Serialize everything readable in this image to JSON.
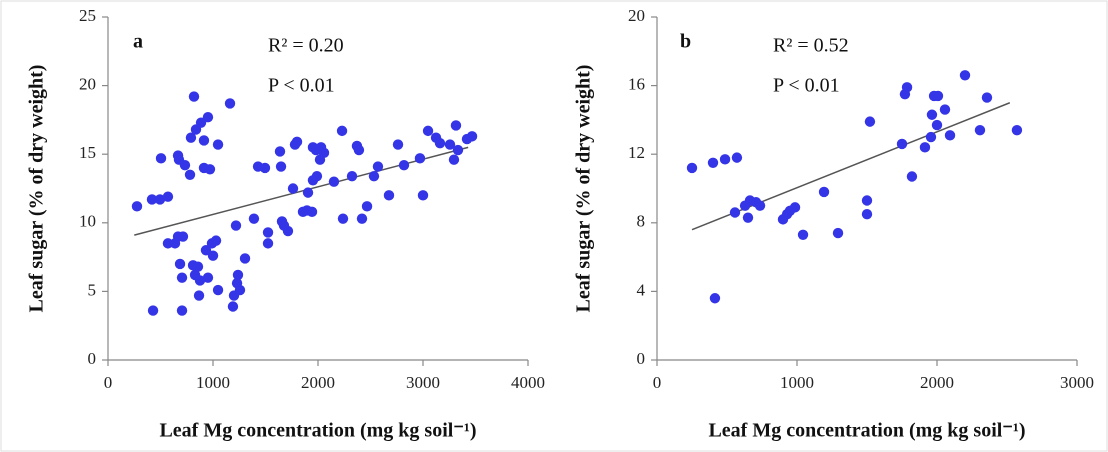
{
  "chart_data": [
    {
      "type": "scatter",
      "color": "#3535e8",
      "xlabel": "Leaf Mg concentration (mg kg soil⁻¹)",
      "ylabel": "Leaf sugar (% of dry weight)",
      "annotations": [
        "a",
        "R² = 0.20",
        "P < 0.01"
      ],
      "xlim": [
        0,
        4000
      ],
      "ylim": [
        0,
        25
      ],
      "xticks": [
        0,
        1000,
        2000,
        3000,
        4000
      ],
      "yticks": [
        0,
        5,
        10,
        15,
        20,
        25
      ],
      "x": [
        276,
        419,
        495,
        571,
        505,
        429,
        571,
        638,
        667,
        714,
        686,
        667,
        733,
        676,
        781,
        819,
        790,
        838,
        886,
        952,
        914,
        914,
        971,
        1048,
        705,
        705,
        810,
        857,
        876,
        867,
        952,
        933,
        990,
        1029,
        1000,
        1048,
        829,
        1162,
        1219,
        1238,
        1229,
        1200,
        1190,
        1257,
        1305,
        1390,
        1429,
        1495,
        1524,
        1524,
        1657,
        1676,
        1714,
        1648,
        1638,
        1781,
        1800,
        1762,
        1895,
        1857,
        1943,
        1905,
        1952,
        1990,
        2019,
        2057,
        1981,
        1952,
        2029,
        2152,
        2229,
        2238,
        2324,
        2371,
        2390,
        2419,
        2467,
        2533,
        2571,
        2676,
        2762,
        2819,
        2971,
        3000,
        3048,
        3124,
        3162,
        3257,
        3314,
        3295,
        3333,
        3419,
        3467
      ],
      "y": [
        11.2,
        11.7,
        11.7,
        11.9,
        14.7,
        3.6,
        8.5,
        8.5,
        9.0,
        9.0,
        7.0,
        14.9,
        14.2,
        14.6,
        13.5,
        19.2,
        16.2,
        16.8,
        17.3,
        17.7,
        16.0,
        14.0,
        13.9,
        15.7,
        3.6,
        6.0,
        6.9,
        6.8,
        5.8,
        4.7,
        6.0,
        8.0,
        8.5,
        8.7,
        7.6,
        5.1,
        6.2,
        18.7,
        9.8,
        6.2,
        5.6,
        4.7,
        3.9,
        5.1,
        7.4,
        10.3,
        14.1,
        14.0,
        9.3,
        8.5,
        10.1,
        9.8,
        9.4,
        14.1,
        15.2,
        15.7,
        15.9,
        12.5,
        10.9,
        10.8,
        10.8,
        12.2,
        13.1,
        13.4,
        14.6,
        15.1,
        15.3,
        15.5,
        15.5,
        13.0,
        16.7,
        10.3,
        13.4,
        15.6,
        15.3,
        10.3,
        11.2,
        13.4,
        14.1,
        12.0,
        15.7,
        14.2,
        14.7,
        12.0,
        16.7,
        16.2,
        15.8,
        15.7,
        17.1,
        14.6,
        15.3,
        16.1,
        16.3
      ],
      "trendline": {
        "x": [
          250,
          3430
        ],
        "y": [
          9.1,
          15.5
        ]
      }
    },
    {
      "type": "scatter",
      "color": "#3535e8",
      "xlabel": "Leaf Mg concentration (mg kg soil⁻¹)",
      "ylabel": "Leaf sugar (% of dry weight)",
      "annotations": [
        "b",
        "R² = 0.52",
        "P < 0.01"
      ],
      "xlim": [
        0,
        3000
      ],
      "ylim": [
        0,
        20
      ],
      "xticks": [
        0,
        1000,
        2000,
        3000
      ],
      "yticks": [
        0,
        4,
        8,
        12,
        16,
        20
      ],
      "x": [
        250,
        400,
        486,
        571,
        414,
        557,
        629,
        650,
        664,
        707,
        736,
        929,
        950,
        986,
        900,
        1043,
        1193,
        1293,
        1500,
        1500,
        1521,
        1750,
        1771,
        1786,
        1821,
        1914,
        1957,
        1979,
        1964,
        2000,
        2007,
        2057,
        2093,
        2200,
        2307,
        2357,
        2571
      ],
      "y": [
        11.2,
        11.5,
        11.7,
        11.8,
        3.6,
        8.6,
        9.0,
        8.3,
        9.3,
        9.2,
        9.0,
        8.5,
        8.7,
        8.9,
        8.2,
        7.3,
        9.8,
        7.4,
        9.3,
        8.5,
        13.9,
        12.6,
        15.5,
        15.9,
        10.7,
        12.4,
        13.0,
        15.4,
        14.3,
        13.7,
        15.4,
        14.6,
        13.1,
        16.6,
        13.4,
        15.3,
        13.4
      ],
      "trendline": {
        "x": [
          250,
          2520
        ],
        "y": [
          7.6,
          15.0
        ]
      }
    }
  ]
}
